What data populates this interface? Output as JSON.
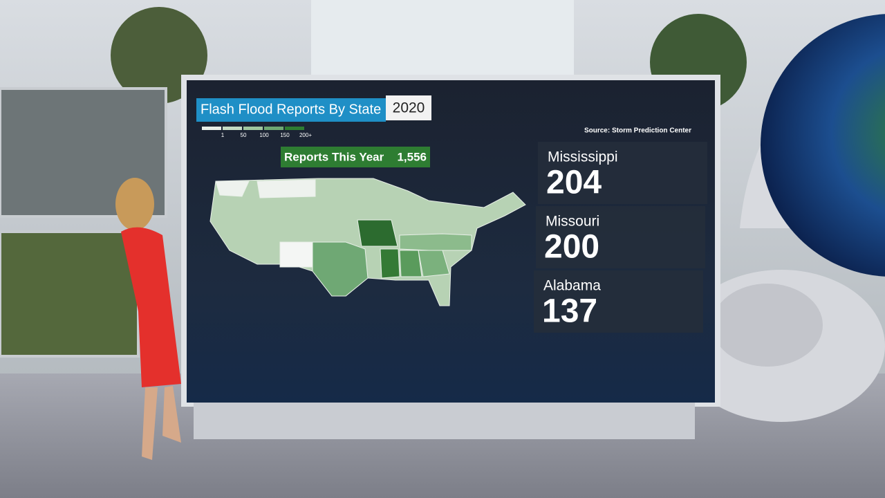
{
  "header": {
    "title": "Flash Flood Reports By State",
    "year": "2020",
    "source": "Source: Storm Prediction Center"
  },
  "legend": {
    "labels": [
      "1",
      "50",
      "100",
      "150",
      "200+"
    ]
  },
  "total": {
    "label": "Reports This Year",
    "value": "1,556"
  },
  "top_states": [
    {
      "name": "Mississippi",
      "value": "204"
    },
    {
      "name": "Missouri",
      "value": "200"
    },
    {
      "name": "Alabama",
      "value": "137"
    }
  ]
}
